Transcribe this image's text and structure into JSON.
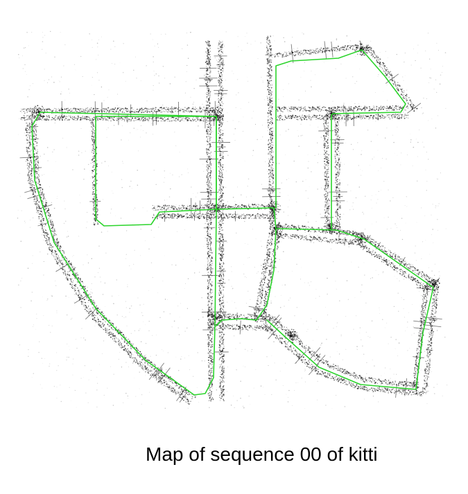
{
  "caption": "Map of sequence 00 of kitti",
  "colors": {
    "trajectory": "#2bd42b",
    "point_cloud": "#111111",
    "background": "#ffffff"
  },
  "map_layers": [
    "point-cloud",
    "trajectory"
  ]
}
